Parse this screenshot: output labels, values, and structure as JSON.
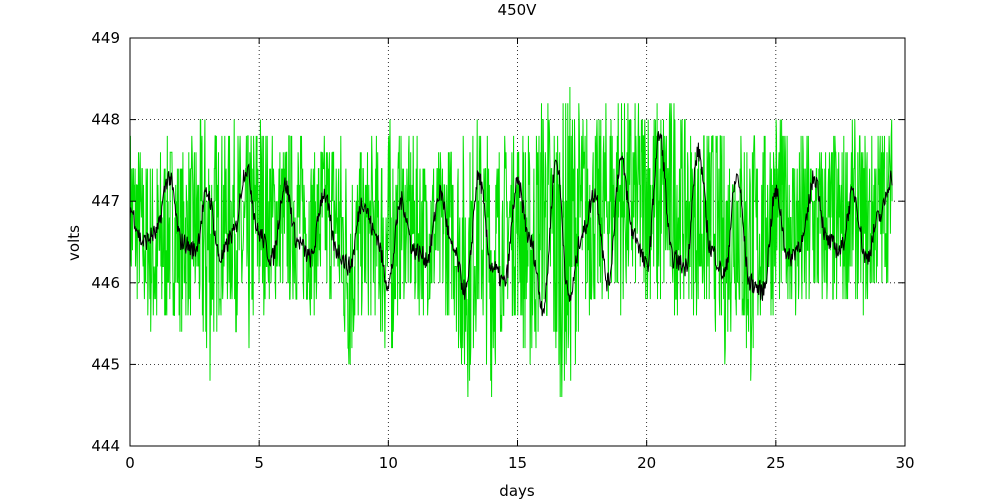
{
  "chart_data": {
    "type": "line",
    "title": "450V",
    "xlabel": "days",
    "ylabel": "volts",
    "xlim": [
      0,
      30
    ],
    "ylim": [
      444,
      449
    ],
    "x_ticks": [
      0,
      5,
      10,
      15,
      20,
      25,
      30
    ],
    "y_ticks": [
      444,
      445,
      446,
      447,
      448,
      449
    ],
    "grid": true,
    "legend": "none",
    "colors": {
      "raw": "#00e000",
      "smoothed": "#000000"
    },
    "series": [
      {
        "role": "raw",
        "x": [
          0,
          0.5,
          1,
          1.5,
          2,
          2.5,
          3,
          3.5,
          4,
          4.5,
          5,
          5.5,
          6,
          6.5,
          7,
          7.5,
          8,
          8.5,
          9,
          9.5,
          10,
          10.5,
          11,
          11.5,
          12,
          12.5,
          13,
          13.5,
          14,
          14.5,
          15,
          15.5,
          16,
          16.5,
          17,
          17.5,
          18,
          18.5,
          19,
          19.5,
          20,
          20.5,
          21,
          21.5,
          22,
          22.5,
          23,
          23.5,
          24,
          24.5,
          25,
          25.5,
          26,
          26.5,
          27,
          27.5,
          28,
          28.5,
          29,
          29.5
        ],
        "min": [
          445.8,
          445.6,
          445.0,
          445.6,
          445.4,
          445.6,
          444.6,
          445.6,
          445.6,
          444.8,
          445.6,
          445.8,
          445.8,
          445.6,
          445.6,
          445.8,
          445.6,
          444.8,
          445.6,
          445.6,
          444.8,
          445.8,
          445.6,
          445.6,
          445.6,
          445.6,
          444.4,
          445.6,
          444.6,
          445.6,
          445.6,
          444.8,
          445.6,
          444.6,
          444.6,
          445.6,
          445.6,
          445.8,
          445.6,
          445.8,
          445.8,
          445.6,
          445.6,
          445.8,
          445.6,
          445.6,
          445.0,
          445.6,
          444.6,
          445.6,
          445.6,
          445.8,
          445.2,
          445.6,
          445.6,
          445.6,
          445.8,
          445.6,
          445.8,
          446.2
        ],
        "max": [
          448.0,
          447.6,
          447.6,
          447.8,
          447.6,
          447.8,
          448.2,
          447.8,
          448.0,
          447.8,
          448.2,
          447.8,
          447.8,
          448.0,
          447.6,
          447.8,
          448.0,
          447.6,
          447.6,
          447.8,
          448.0,
          447.8,
          447.8,
          447.6,
          447.6,
          447.8,
          447.8,
          448.0,
          447.8,
          447.8,
          448.0,
          447.8,
          448.4,
          448.2,
          448.4,
          448.2,
          448.0,
          448.2,
          448.4,
          448.2,
          448.4,
          448.2,
          448.4,
          448.0,
          447.8,
          448.0,
          447.8,
          448.0,
          448.0,
          447.8,
          448.2,
          447.8,
          448.0,
          447.8,
          447.8,
          447.8,
          448.0,
          447.8,
          448.0,
          448.0
        ]
      },
      {
        "role": "smoothed",
        "x": [
          0,
          0.5,
          1,
          1.5,
          2,
          2.5,
          3,
          3.5,
          4,
          4.5,
          5,
          5.5,
          6,
          6.5,
          7,
          7.5,
          8,
          8.5,
          9,
          9.5,
          10,
          10.5,
          11,
          11.5,
          12,
          12.5,
          13,
          13.5,
          14,
          14.5,
          15,
          15.5,
          16,
          16.5,
          17,
          17.5,
          18,
          18.5,
          19,
          19.5,
          20,
          20.5,
          21,
          21.5,
          22,
          22.5,
          23,
          23.5,
          24,
          24.5,
          25,
          25.5,
          26,
          26.5,
          27,
          27.5,
          28,
          28.5,
          29,
          29.5
        ],
        "y": [
          446.9,
          446.5,
          446.6,
          447.3,
          446.5,
          446.4,
          447.1,
          446.3,
          446.6,
          447.4,
          446.6,
          446.3,
          447.2,
          446.5,
          446.3,
          447.1,
          446.4,
          446.2,
          447.0,
          446.6,
          446.0,
          447.0,
          446.4,
          446.3,
          447.1,
          446.4,
          445.9,
          447.3,
          446.2,
          446.0,
          447.2,
          446.5,
          445.7,
          447.5,
          445.8,
          446.6,
          447.1,
          446.0,
          447.5,
          446.6,
          446.2,
          447.8,
          446.3,
          446.2,
          447.6,
          446.4,
          446.1,
          447.3,
          446.0,
          445.9,
          447.1,
          446.3,
          446.5,
          447.3,
          446.5,
          446.4,
          447.1,
          446.3,
          446.8,
          447.3
        ]
      }
    ]
  }
}
